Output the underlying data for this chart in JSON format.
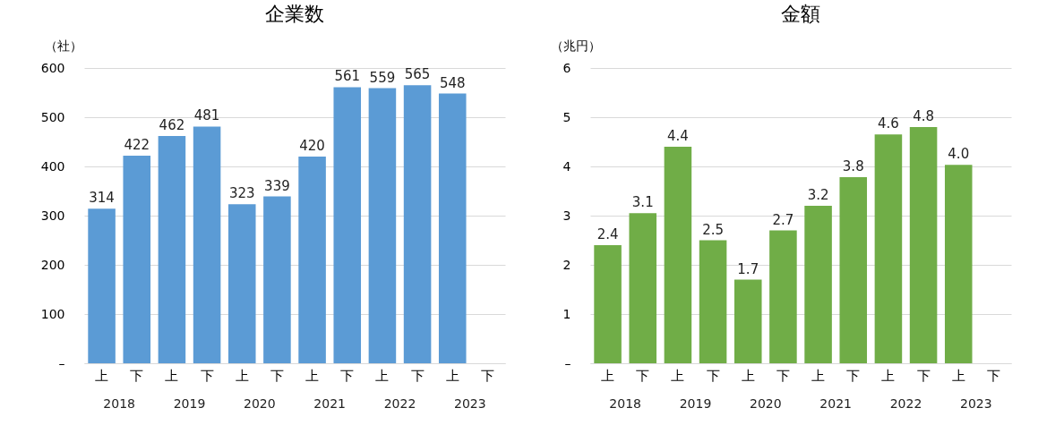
{
  "chart_data": [
    {
      "type": "bar",
      "title": "企業数",
      "ylabel": "（社）",
      "categories": [
        "上",
        "下",
        "上",
        "下",
        "上",
        "下",
        "上",
        "下",
        "上",
        "下",
        "上",
        "下"
      ],
      "values": [
        314,
        422,
        462,
        481,
        323,
        339,
        420,
        561,
        559,
        565,
        548,
        null
      ],
      "color": "#5b9bd5",
      "data_labels": true,
      "ylim": [
        0,
        600
      ],
      "yticks": [
        {
          "value": 0,
          "label": "–"
        },
        100,
        200,
        300,
        400,
        500,
        600
      ],
      "grid": "y",
      "annotations": [
        "2018",
        "2019",
        "2020",
        "2021",
        "2022",
        "2023"
      ]
    },
    {
      "type": "bar",
      "title": "金額",
      "ylabel": "（兆円）",
      "categories": [
        "上",
        "下",
        "上",
        "下",
        "上",
        "下",
        "上",
        "下",
        "上",
        "下",
        "上",
        "下"
      ],
      "values": [
        2.4,
        3.05,
        4.4,
        2.5,
        1.7,
        2.7,
        3.2,
        3.78,
        4.65,
        4.8,
        4.03,
        null
      ],
      "color": "#70ad47",
      "value_labels": [
        "2.4",
        "3.1",
        "4.4",
        "2.5",
        "1.7",
        "2.7",
        "3.2",
        "3.8",
        "4.6",
        "4.8",
        "4.0",
        null
      ],
      "ylim": [
        0,
        6
      ],
      "yticks": [
        {
          "value": 0,
          "label": "–"
        },
        1,
        2,
        3,
        4,
        5,
        6
      ],
      "grid": "y",
      "annotations": [
        "2018",
        "2019",
        "2020",
        "2021",
        "2022",
        "2023"
      ]
    }
  ]
}
